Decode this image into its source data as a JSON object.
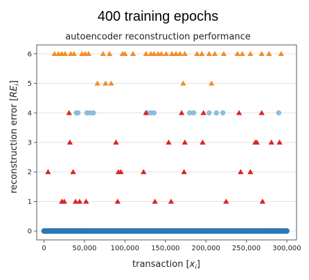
{
  "heading": "400 training epochs",
  "chart_data": {
    "type": "scatter",
    "title": "autoencoder reconstruction performance",
    "xlabel": "transaction [x_i]",
    "xlabel_main": "transaction ",
    "xlabel_sub": "i",
    "ylabel": "reconstruction error [RE_i]",
    "ylabel_main": "reconstruction error ",
    "ylabel_sub": "i",
    "xlim": [
      -9000,
      312000
    ],
    "ylim": [
      -0.3,
      6.3
    ],
    "xticks": [
      0,
      50000,
      100000,
      150000,
      200000,
      250000,
      300000
    ],
    "xtick_labels": [
      "0",
      "50,000",
      "100,000",
      "150,000",
      "200,000",
      "250,000",
      "300,000"
    ],
    "yticks": [
      0,
      1,
      2,
      3,
      4,
      5,
      6
    ],
    "ytick_labels": [
      "0",
      "1",
      "2",
      "3",
      "4",
      "5",
      "6"
    ],
    "grid": "horizontal",
    "legend": "none",
    "baseline": {
      "x_start": 0,
      "x_end": 300000,
      "y": 0,
      "color": "#2878b8"
    },
    "series": [
      {
        "marker": "circle",
        "color": "#8fbfdf",
        "points": [
          [
            40000,
            4
          ],
          [
            42000,
            4
          ],
          [
            53000,
            4
          ],
          [
            57000,
            4
          ],
          [
            61000,
            4
          ],
          [
            127000,
            4
          ],
          [
            132000,
            4
          ],
          [
            136000,
            4
          ],
          [
            180000,
            4
          ],
          [
            185000,
            4
          ],
          [
            204000,
            4
          ],
          [
            213000,
            4
          ],
          [
            221000,
            4
          ],
          [
            290000,
            4
          ]
        ]
      },
      {
        "marker": "triangle",
        "color": "#d62728",
        "points": [
          [
            5000,
            2
          ],
          [
            22000,
            1
          ],
          [
            25000,
            1
          ],
          [
            31000,
            4
          ],
          [
            32000,
            3
          ],
          [
            36000,
            2
          ],
          [
            39000,
            1
          ],
          [
            44000,
            1
          ],
          [
            52000,
            1
          ],
          [
            89000,
            3
          ],
          [
            91000,
            1
          ],
          [
            92000,
            2
          ],
          [
            95000,
            2
          ],
          [
            123000,
            2
          ],
          [
            126000,
            4
          ],
          [
            137000,
            1
          ],
          [
            154000,
            3
          ],
          [
            157000,
            1
          ],
          [
            170000,
            4
          ],
          [
            173000,
            2
          ],
          [
            174000,
            3
          ],
          [
            196000,
            3
          ],
          [
            197000,
            4
          ],
          [
            225000,
            1
          ],
          [
            241000,
            4
          ],
          [
            243000,
            2
          ],
          [
            255000,
            2
          ],
          [
            261000,
            3
          ],
          [
            263000,
            3
          ],
          [
            269000,
            4
          ],
          [
            270000,
            1
          ],
          [
            281000,
            3
          ],
          [
            291000,
            3
          ]
        ]
      },
      {
        "marker": "triangle",
        "color": "#f28e2b",
        "points": [
          [
            13000,
            6
          ],
          [
            18000,
            6
          ],
          [
            22000,
            6
          ],
          [
            26000,
            6
          ],
          [
            33000,
            6
          ],
          [
            37000,
            6
          ],
          [
            47000,
            6
          ],
          [
            51000,
            6
          ],
          [
            55000,
            6
          ],
          [
            66000,
            5
          ],
          [
            73000,
            6
          ],
          [
            76000,
            5
          ],
          [
            81000,
            6
          ],
          [
            83000,
            5
          ],
          [
            97000,
            6
          ],
          [
            100000,
            6
          ],
          [
            110000,
            6
          ],
          [
            126000,
            6
          ],
          [
            132000,
            6
          ],
          [
            136000,
            6
          ],
          [
            141000,
            6
          ],
          [
            145000,
            6
          ],
          [
            151000,
            6
          ],
          [
            158000,
            6
          ],
          [
            163000,
            6
          ],
          [
            168000,
            6
          ],
          [
            172000,
            5
          ],
          [
            174000,
            6
          ],
          [
            189000,
            6
          ],
          [
            195000,
            6
          ],
          [
            204000,
            6
          ],
          [
            207000,
            5
          ],
          [
            211000,
            6
          ],
          [
            222000,
            6
          ],
          [
            239000,
            6
          ],
          [
            245000,
            6
          ],
          [
            255000,
            6
          ],
          [
            269000,
            6
          ],
          [
            278000,
            6
          ],
          [
            293000,
            6
          ]
        ]
      }
    ]
  }
}
